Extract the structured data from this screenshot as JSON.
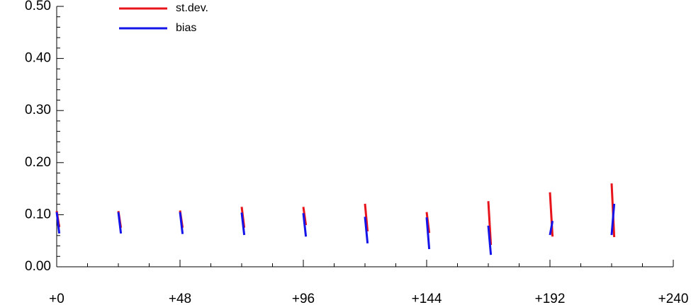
{
  "chart_data": {
    "type": "line",
    "x": [
      0,
      1,
      24,
      25,
      48,
      49,
      72,
      73,
      96,
      97,
      120,
      121,
      144,
      145,
      168,
      169,
      192,
      193,
      216,
      217
    ],
    "series": [
      {
        "name": "st.dev.",
        "color": "#e8141c",
        "values": [
          0.107,
          0.076,
          0.107,
          0.075,
          0.108,
          0.075,
          0.115,
          0.075,
          0.115,
          0.08,
          0.121,
          0.068,
          0.105,
          0.065,
          0.126,
          0.042,
          0.143,
          0.058,
          0.16,
          0.057
        ]
      },
      {
        "name": "bias",
        "color": "#1414e8",
        "values": [
          0.105,
          0.064,
          0.105,
          0.064,
          0.105,
          0.063,
          0.104,
          0.061,
          0.103,
          0.058,
          0.096,
          0.045,
          0.095,
          0.034,
          0.079,
          0.023,
          0.061,
          0.088,
          0.061,
          0.121
        ]
      }
    ],
    "xlim": [
      0,
      240
    ],
    "xticks": [
      {
        "value": 0,
        "label": "+0"
      },
      {
        "value": 48,
        "label": "+48"
      },
      {
        "value": 96,
        "label": "+96"
      },
      {
        "value": 144,
        "label": "+144"
      },
      {
        "value": 192,
        "label": "+192"
      },
      {
        "value": 240,
        "label": "+240"
      }
    ],
    "ylim": [
      0,
      0.5
    ],
    "yticks": [
      {
        "value": 0,
        "label": "0.00"
      },
      {
        "value": 0.1,
        "label": "0.10"
      },
      {
        "value": 0.2,
        "label": "0.20"
      },
      {
        "value": 0.3,
        "label": "0.30"
      },
      {
        "value": 0.4,
        "label": "0.40"
      },
      {
        "value": 0.5,
        "label": "0.50"
      }
    ],
    "legend": "top-left"
  }
}
